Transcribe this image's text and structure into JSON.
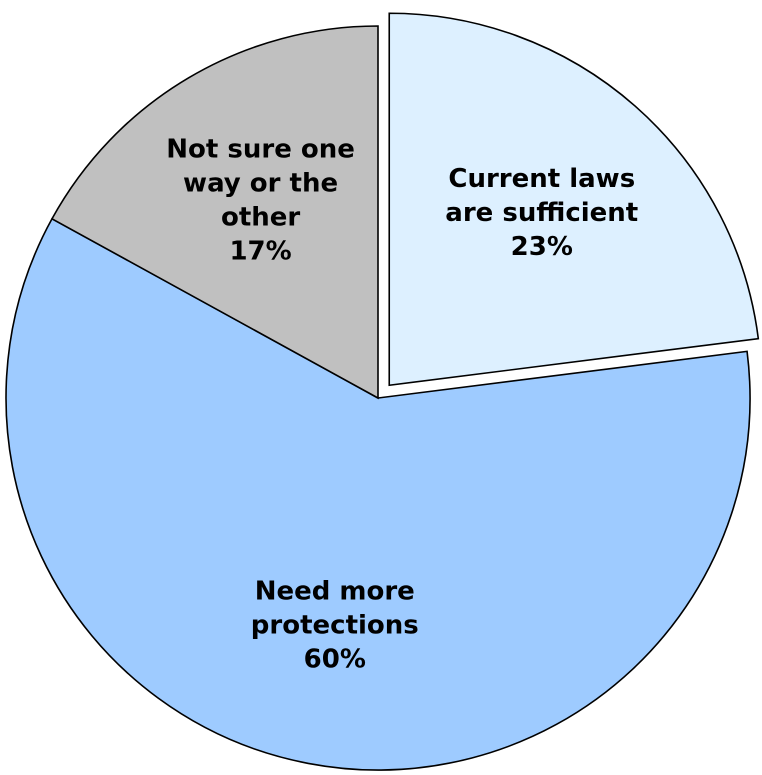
{
  "chart_data": {
    "type": "pie",
    "title": "",
    "slices": [
      {
        "name": "Current laws are sufficient",
        "label_lines": [
          "Current laws",
          "are sufficient"
        ],
        "value": 23,
        "value_label": "23%",
        "color": "#DDF0FF",
        "exploded": true
      },
      {
        "name": "Need more protections",
        "label_lines": [
          "Need more",
          "protections"
        ],
        "value": 60,
        "value_label": "60%",
        "color": "#9ECBFF",
        "exploded": false
      },
      {
        "name": "Not sure one way or the other",
        "label_lines": [
          "Not sure one",
          "way or the",
          "other"
        ],
        "value": 17,
        "value_label": "17%",
        "color": "#C0C0C0",
        "exploded": false
      }
    ],
    "start_angle_deg": 0,
    "direction": "clockwise",
    "legend": "none"
  }
}
